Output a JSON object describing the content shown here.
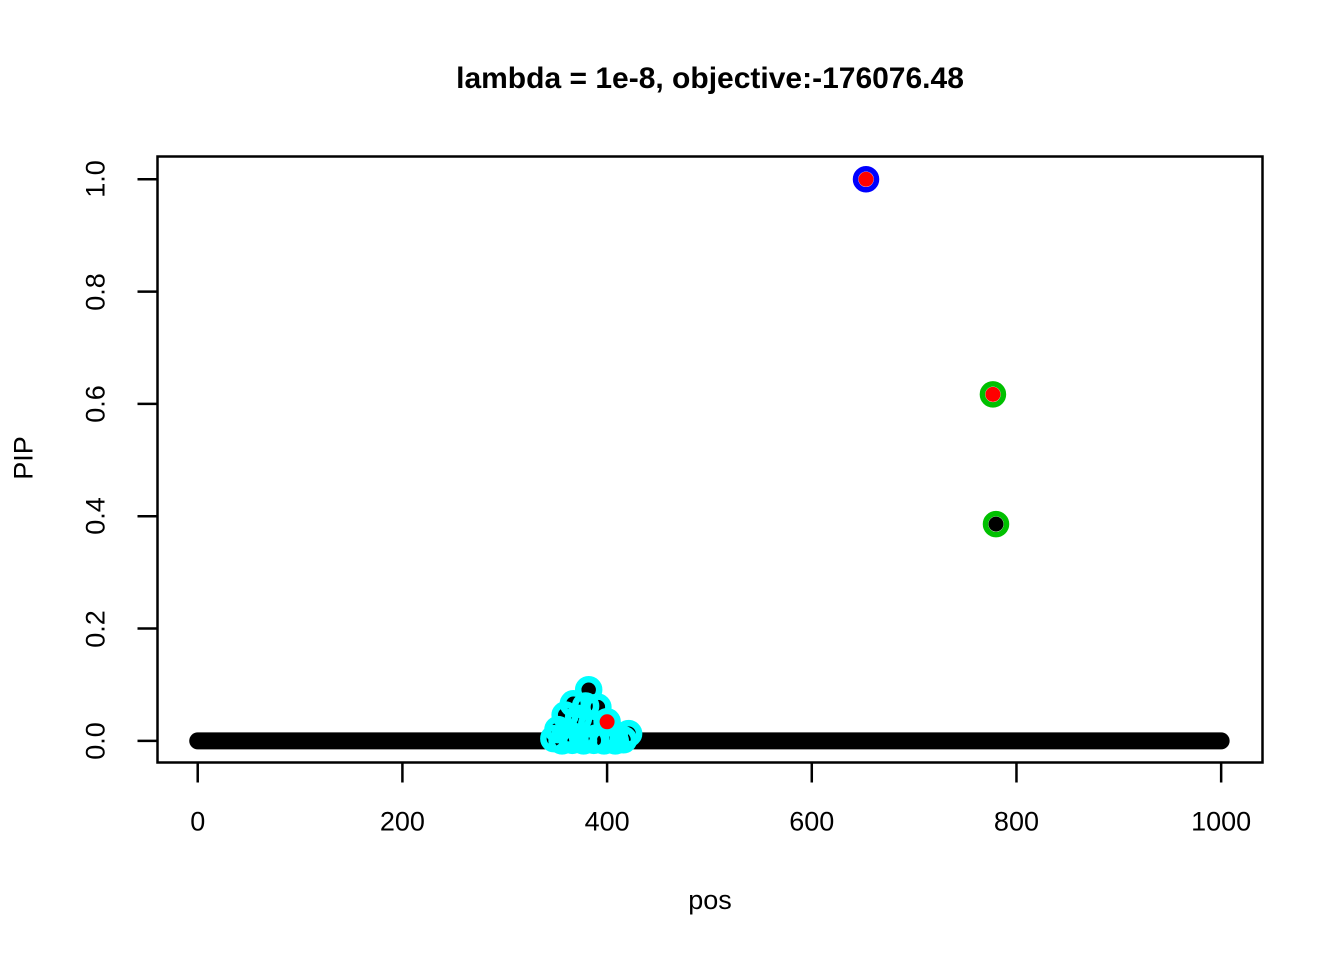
{
  "chart_data": {
    "type": "scatter",
    "title": "lambda = 1e-8, objective:-176076.48",
    "xlabel": "pos",
    "ylabel": "PIP",
    "xlim": [
      -39.3,
      1040.4
    ],
    "ylim": [
      -0.0385,
      1.0405
    ],
    "x_ticks": {
      "values": [
        0,
        200,
        400,
        600,
        800,
        1000
      ],
      "labels": [
        "0",
        "200",
        "400",
        "600",
        "800",
        "1000"
      ]
    },
    "y_ticks": {
      "values": [
        0.0,
        0.2,
        0.4,
        0.6,
        0.8,
        1.0
      ],
      "labels": [
        "0.0",
        "0.2",
        "0.4",
        "0.6",
        "0.8",
        "1.0"
      ]
    },
    "grid": "off",
    "legend": "none",
    "colors": {
      "black": "#000000",
      "red": "#ff0000",
      "blue": "#0000ff",
      "green": "#00c000",
      "cyan": "#00ffff"
    },
    "baseline_run": {
      "pip": 0.0,
      "pos_start": 0,
      "pos_end": 1000,
      "color": "black",
      "note": "dense run of solid black points at PIP=0 spanning all positions"
    },
    "highlight_points": [
      {
        "pos": 653,
        "pip": 1.0,
        "dot": "red",
        "ring": "blue"
      },
      {
        "pos": 777,
        "pip": 0.617,
        "dot": "red",
        "ring": "green"
      },
      {
        "pos": 780,
        "pip": 0.386,
        "dot": "black",
        "ring": "green"
      }
    ],
    "cluster_points": [
      {
        "pos": 382,
        "pip": 0.091,
        "dot": "black",
        "ring": "cyan"
      },
      {
        "pos": 367,
        "pip": 0.066,
        "dot": "black",
        "ring": "cyan"
      },
      {
        "pos": 379,
        "pip": 0.062,
        "dot": "black",
        "ring": "cyan"
      },
      {
        "pos": 391,
        "pip": 0.06,
        "dot": "black",
        "ring": "cyan"
      },
      {
        "pos": 359,
        "pip": 0.046,
        "dot": "black",
        "ring": "cyan"
      },
      {
        "pos": 372,
        "pip": 0.04,
        "dot": "black",
        "ring": "cyan"
      },
      {
        "pos": 385,
        "pip": 0.03,
        "dot": "black",
        "ring": "cyan"
      },
      {
        "pos": 400,
        "pip": 0.034,
        "dot": "red",
        "ring": "cyan"
      },
      {
        "pos": 352,
        "pip": 0.02,
        "dot": "black",
        "ring": "cyan"
      },
      {
        "pos": 363,
        "pip": 0.012,
        "dot": "black",
        "ring": "cyan"
      },
      {
        "pos": 376,
        "pip": 0.007,
        "dot": "black",
        "ring": "cyan"
      },
      {
        "pos": 389,
        "pip": 0.005,
        "dot": "black",
        "ring": "cyan"
      },
      {
        "pos": 407,
        "pip": 0.012,
        "dot": "black",
        "ring": "cyan"
      },
      {
        "pos": 421,
        "pip": 0.013,
        "dot": "black",
        "ring": "cyan"
      },
      {
        "pos": 348,
        "pip": 0.004,
        "dot": "black",
        "ring": "cyan"
      },
      {
        "pos": 356,
        "pip": 0.0,
        "dot": "black",
        "ring": "cyan"
      },
      {
        "pos": 366,
        "pip": 0.001,
        "dot": "black",
        "ring": "cyan"
      },
      {
        "pos": 377,
        "pip": 0.0,
        "dot": "black",
        "ring": "cyan"
      },
      {
        "pos": 387,
        "pip": 0.001,
        "dot": "black",
        "ring": "cyan"
      },
      {
        "pos": 397,
        "pip": 0.0,
        "dot": "black",
        "ring": "cyan"
      },
      {
        "pos": 408,
        "pip": 0.0,
        "dot": "black",
        "ring": "cyan"
      },
      {
        "pos": 416,
        "pip": 0.002,
        "dot": "black",
        "ring": "cyan"
      }
    ]
  }
}
